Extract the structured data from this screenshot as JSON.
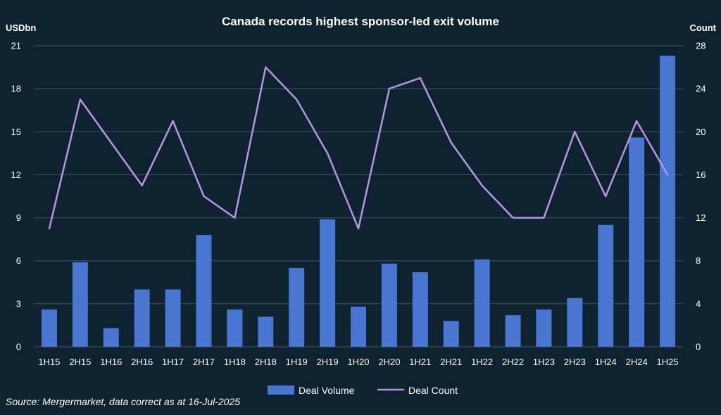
{
  "chart_data": {
    "type": "bar+line",
    "title": "Canada records highest sponsor-led exit volume",
    "y_left_label": "USDbn",
    "y_right_label": "Count",
    "y_left_lim": [
      0,
      21
    ],
    "y_left_ticks": [
      0,
      3,
      6,
      9,
      12,
      15,
      18,
      21
    ],
    "y_right_lim": [
      0,
      28
    ],
    "y_right_ticks": [
      0,
      4,
      8,
      12,
      16,
      20,
      24,
      28
    ],
    "grid": true,
    "legend_position": "bottom",
    "categories": [
      "1H15",
      "2H15",
      "1H16",
      "2H16",
      "1H17",
      "2H17",
      "1H18",
      "2H18",
      "1H19",
      "2H19",
      "1H20",
      "2H20",
      "1H21",
      "2H21",
      "1H22",
      "2H22",
      "1H23",
      "2H23",
      "1H24",
      "2H24",
      "1H25"
    ],
    "series": [
      {
        "name": "Deal Volume",
        "type": "bar",
        "axis": "left",
        "color": "#4876d0",
        "values": [
          2.6,
          5.9,
          1.3,
          4.0,
          4.0,
          7.8,
          2.6,
          2.1,
          5.5,
          8.9,
          2.8,
          5.8,
          5.2,
          1.8,
          6.1,
          2.2,
          2.6,
          3.4,
          8.5,
          14.6,
          20.3
        ]
      },
      {
        "name": "Deal Count",
        "type": "line",
        "axis": "right",
        "color": "#b596e0",
        "values": [
          11,
          23,
          19,
          15,
          21,
          14,
          12,
          26,
          23,
          18,
          11,
          24,
          25,
          19,
          15,
          12,
          12,
          20,
          14,
          21,
          16
        ]
      }
    ]
  },
  "source_note": "Source: Mergermarket, data correct as at 16-Jul-2025",
  "colors": {
    "background": "#0f2230",
    "grid": "#44566a",
    "text": "#ffffff"
  }
}
